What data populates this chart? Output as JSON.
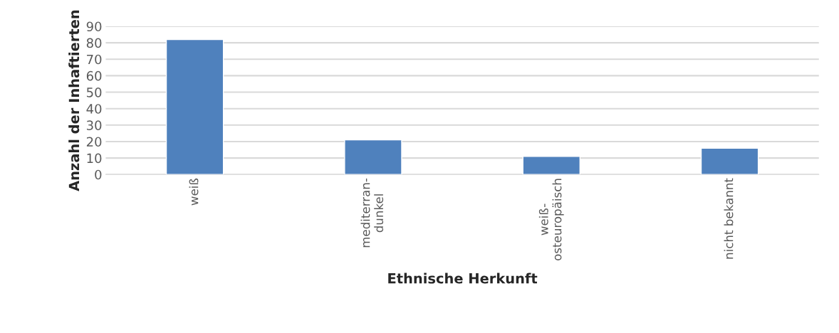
{
  "chart_data": {
    "type": "bar",
    "xlabel": "Ethnische Herkunft",
    "ylabel": "Anzahl der Inhaftierten",
    "categories": [
      "weiß",
      "mediterran-\ndunkel",
      "weiß-\nosteuropäisch",
      "nicht bekannt"
    ],
    "values": [
      82,
      21,
      11,
      16
    ],
    "color": "#4f81bd",
    "ylim": [
      0,
      90
    ],
    "yticks": [
      0,
      10,
      20,
      30,
      40,
      50,
      60,
      70,
      80,
      90
    ],
    "grid": "y"
  }
}
